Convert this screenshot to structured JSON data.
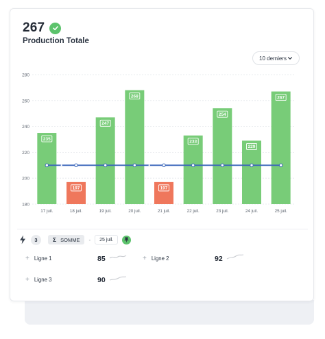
{
  "kpi": {
    "value": "267",
    "title": "Production Totale",
    "status_icon": "check-icon"
  },
  "filter": {
    "label": "10 derniers"
  },
  "chart_data": {
    "type": "bar",
    "categories": [
      "17 juil.",
      "18 juil.",
      "19 juil.",
      "20 juil.",
      "21 juil.",
      "22 juil.",
      "23 juil.",
      "24 juil.",
      "25 juil."
    ],
    "values": [
      235,
      197,
      247,
      268,
      197,
      233,
      254,
      229,
      267
    ],
    "labels": [
      "235",
      "197",
      "247",
      "268",
      "197",
      "233",
      "254",
      "229",
      "267"
    ],
    "highlight": [
      false,
      true,
      false,
      false,
      true,
      false,
      false,
      false,
      false
    ],
    "reference_line": 210,
    "ylim": [
      180,
      280
    ],
    "yticks": [
      "180",
      "200",
      "220",
      "240",
      "260",
      "280"
    ],
    "grid": true,
    "colors": {
      "bar": "#78cc78",
      "bar_label_border": "#4faa55",
      "highlight": "#ef775c",
      "line": "#3a66bb"
    }
  },
  "aggregate": {
    "count": "3",
    "function_label": "SOMME",
    "separator": "-",
    "date": "25 juil."
  },
  "lines": [
    {
      "label": "Ligne 1",
      "value": "85"
    },
    {
      "label": "Ligne 2",
      "value": "92"
    },
    {
      "label": "Ligne 3",
      "value": "90"
    }
  ]
}
